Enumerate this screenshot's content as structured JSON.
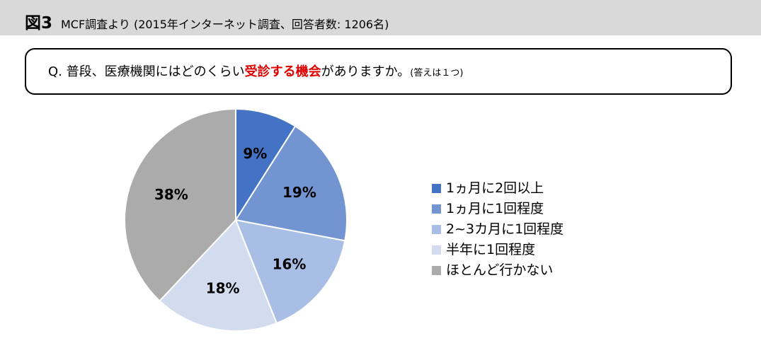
{
  "figure": {
    "label": "図3",
    "caption": "MCF調査より (2015年インターネット調査、回答者数: 1206名)"
  },
  "question": {
    "prefix": "Q. 普段、医療機関にはどのくらい",
    "emphasis": "受診する機会",
    "suffix": "がありますか。",
    "note": "(答えは１つ)",
    "emphasis_color": "#e00000"
  },
  "chart_data": {
    "type": "pie",
    "title": "",
    "start": "12 o'clock, clockwise",
    "legend_position": "right",
    "slices": [
      {
        "label": "1ヵ月に2回以上",
        "value": 9,
        "display": "9%",
        "color": "#4472c4"
      },
      {
        "label": "1ヵ月に1回程度",
        "value": 19,
        "display": "19%",
        "color": "#7295d2"
      },
      {
        "label": "2~3カ月に1回程度",
        "value": 16,
        "display": "16%",
        "color": "#a9bee4"
      },
      {
        "label": "半年に1回程度",
        "value": 18,
        "display": "18%",
        "color": "#d3dcef"
      },
      {
        "label": "ほとんど行かない",
        "value": 38,
        "display": "38%",
        "color": "#ababab"
      }
    ]
  }
}
